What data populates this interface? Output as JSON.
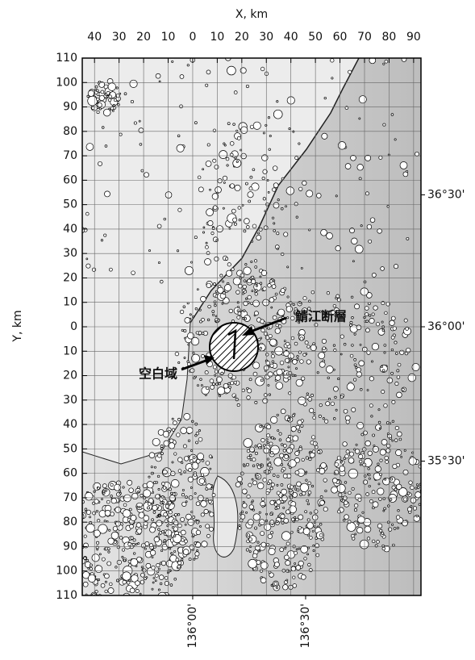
{
  "map": {
    "x_axis": {
      "label": "X, km",
      "lim": [
        -45,
        93
      ],
      "ticks": [
        {
          "value": -40,
          "label": "40"
        },
        {
          "value": -30,
          "label": "30"
        },
        {
          "value": -20,
          "label": "20"
        },
        {
          "value": -10,
          "label": "10"
        },
        0,
        10,
        20,
        30,
        40,
        50,
        60,
        70,
        80,
        90
      ]
    },
    "y_axis": {
      "label": "Y, km",
      "lim": [
        -110,
        110
      ],
      "ticks": [
        110,
        100,
        90,
        80,
        70,
        60,
        50,
        40,
        30,
        20,
        10,
        0,
        {
          "value": -10,
          "label": "10"
        },
        {
          "value": -20,
          "label": "20"
        },
        {
          "value": -30,
          "label": "30"
        },
        {
          "value": -40,
          "label": "40"
        },
        {
          "value": -50,
          "label": "50"
        },
        {
          "value": -60,
          "label": "60"
        },
        {
          "value": -70,
          "label": "70"
        },
        {
          "value": -80,
          "label": "80"
        },
        {
          "value": -90,
          "label": "90"
        },
        {
          "value": -100,
          "label": "100"
        },
        {
          "value": -110,
          "label": "110"
        }
      ]
    },
    "latitude_labels": [
      {
        "value": 54,
        "label": "36°30'"
      },
      {
        "value": 0,
        "label": "36°00'"
      },
      {
        "value": -55,
        "label": "35°30'"
      }
    ],
    "longitude_labels": [
      {
        "value": 0,
        "label": "136°00'"
      },
      {
        "value": 46,
        "label": "136°30'"
      }
    ],
    "grid": true,
    "annotations": {
      "fault": "鯖江断層",
      "gap": "空白域"
    }
  }
}
